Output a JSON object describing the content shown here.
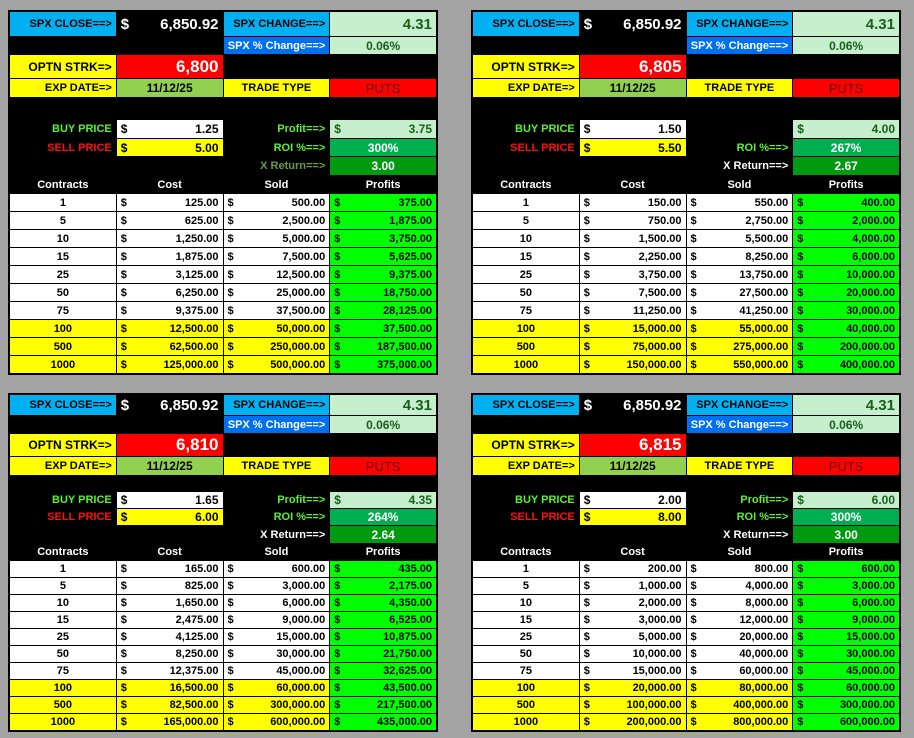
{
  "labels": {
    "spx_close": "SPX CLOSE==>",
    "spx_change": "SPX CHANGE==>",
    "spx_pct_change": "SPX % Change==>",
    "strike": "OPTN STRK=>",
    "exp_date": "EXP DATE=>",
    "trade_type": "TRADE TYPE",
    "buy_price": "BUY PRICE",
    "sell_price": "SELL PRICE",
    "profit": "Profit==>",
    "roi": "ROI %==>",
    "x_return": "X Return==>",
    "currency": "$",
    "headers": [
      "Contracts",
      "Cost",
      "Sold",
      "Profits"
    ]
  },
  "colors": {
    "buy_label": "#5cf030",
    "sell_label": "#ff1010",
    "profit_label": "#5cf030",
    "roi_label": "#5cf030"
  },
  "panels": [
    {
      "spx_close": "6,850.92",
      "spx_change": "4.31",
      "spx_pct": "0.06%",
      "strike": "6,800",
      "exp": "11/12/25",
      "trade": "PUTS",
      "buy": "1.25",
      "sell": "5.00",
      "profit_label": "Profit==>",
      "profit": "3.75",
      "roi": "300%",
      "xret": "3.00",
      "xret_color": "#6a9a4a",
      "rows": [
        [
          "1",
          "125.00",
          "500.00",
          "375.00"
        ],
        [
          "5",
          "625.00",
          "2,500.00",
          "1,875.00"
        ],
        [
          "10",
          "1,250.00",
          "5,000.00",
          "3,750.00"
        ],
        [
          "15",
          "1,875.00",
          "7,500.00",
          "5,625.00"
        ],
        [
          "25",
          "3,125.00",
          "12,500.00",
          "9,375.00"
        ],
        [
          "50",
          "6,250.00",
          "25,000.00",
          "18,750.00"
        ],
        [
          "75",
          "9,375.00",
          "37,500.00",
          "28,125.00"
        ],
        [
          "100",
          "12,500.00",
          "50,000.00",
          "37,500.00"
        ],
        [
          "500",
          "62,500.00",
          "250,000.00",
          "187,500.00"
        ],
        [
          "1000",
          "125,000.00",
          "500,000.00",
          "375,000.00"
        ]
      ]
    },
    {
      "spx_close": "6,850.92",
      "spx_change": "4.31",
      "spx_pct": "0.06%",
      "strike": "6,805",
      "exp": "11/12/25",
      "trade": "PUTS",
      "buy": "1.50",
      "sell": "5.50",
      "profit_label": "",
      "profit": "4.00",
      "roi": "267%",
      "xret": "2.67",
      "xret_color": "#ffffff",
      "rows": [
        [
          "1",
          "150.00",
          "550.00",
          "400.00"
        ],
        [
          "5",
          "750.00",
          "2,750.00",
          "2,000.00"
        ],
        [
          "10",
          "1,500.00",
          "5,500.00",
          "4,000.00"
        ],
        [
          "15",
          "2,250.00",
          "8,250.00",
          "6,000.00"
        ],
        [
          "25",
          "3,750.00",
          "13,750.00",
          "10,000.00"
        ],
        [
          "50",
          "7,500.00",
          "27,500.00",
          "20,000.00"
        ],
        [
          "75",
          "11,250.00",
          "41,250.00",
          "30,000.00"
        ],
        [
          "100",
          "15,000.00",
          "55,000.00",
          "40,000.00"
        ],
        [
          "500",
          "75,000.00",
          "275,000.00",
          "200,000.00"
        ],
        [
          "1000",
          "150,000.00",
          "550,000.00",
          "400,000.00"
        ]
      ]
    },
    {
      "spx_close": "6,850.92",
      "spx_change": "4.31",
      "spx_pct": "0.06%",
      "strike": "6,810",
      "exp": "11/12/25",
      "trade": "PUTS",
      "buy": "1.65",
      "sell": "6.00",
      "profit_label": "Profit==>",
      "profit": "4.35",
      "roi": "264%",
      "xret": "2.64",
      "xret_color": "#ffffff",
      "rows": [
        [
          "1",
          "165.00",
          "600.00",
          "435.00"
        ],
        [
          "5",
          "825.00",
          "3,000.00",
          "2,175.00"
        ],
        [
          "10",
          "1,650.00",
          "6,000.00",
          "4,350.00"
        ],
        [
          "15",
          "2,475.00",
          "9,000.00",
          "6,525.00"
        ],
        [
          "25",
          "4,125.00",
          "15,000.00",
          "10,875.00"
        ],
        [
          "50",
          "8,250.00",
          "30,000.00",
          "21,750.00"
        ],
        [
          "75",
          "12,375.00",
          "45,000.00",
          "32,625.00"
        ],
        [
          "100",
          "16,500.00",
          "60,000.00",
          "43,500.00"
        ],
        [
          "500",
          "82,500.00",
          "300,000.00",
          "217,500.00"
        ],
        [
          "1000",
          "165,000.00",
          "600,000.00",
          "435,000.00"
        ]
      ]
    },
    {
      "spx_close": "6,850.92",
      "spx_change": "4.31",
      "spx_pct": "0.06%",
      "strike": "6,815",
      "exp": "11/12/25",
      "trade": "PUTS",
      "buy": "2.00",
      "sell": "8.00",
      "profit_label": "Profit==>",
      "profit": "6.00",
      "roi": "300%",
      "xret": "3.00",
      "xret_color": "#ffffff",
      "rows": [
        [
          "1",
          "200.00",
          "800.00",
          "600.00"
        ],
        [
          "5",
          "1,000.00",
          "4,000.00",
          "3,000.00"
        ],
        [
          "10",
          "2,000.00",
          "8,000.00",
          "6,000.00"
        ],
        [
          "15",
          "3,000.00",
          "12,000.00",
          "9,000.00"
        ],
        [
          "25",
          "5,000.00",
          "20,000.00",
          "15,000.00"
        ],
        [
          "50",
          "10,000.00",
          "40,000.00",
          "30,000.00"
        ],
        [
          "75",
          "15,000.00",
          "60,000.00",
          "45,000.00"
        ],
        [
          "100",
          "20,000.00",
          "80,000.00",
          "60,000.00"
        ],
        [
          "500",
          "100,000.00",
          "400,000.00",
          "300,000.00"
        ],
        [
          "1000",
          "200,000.00",
          "800,000.00",
          "600,000.00"
        ]
      ]
    }
  ]
}
